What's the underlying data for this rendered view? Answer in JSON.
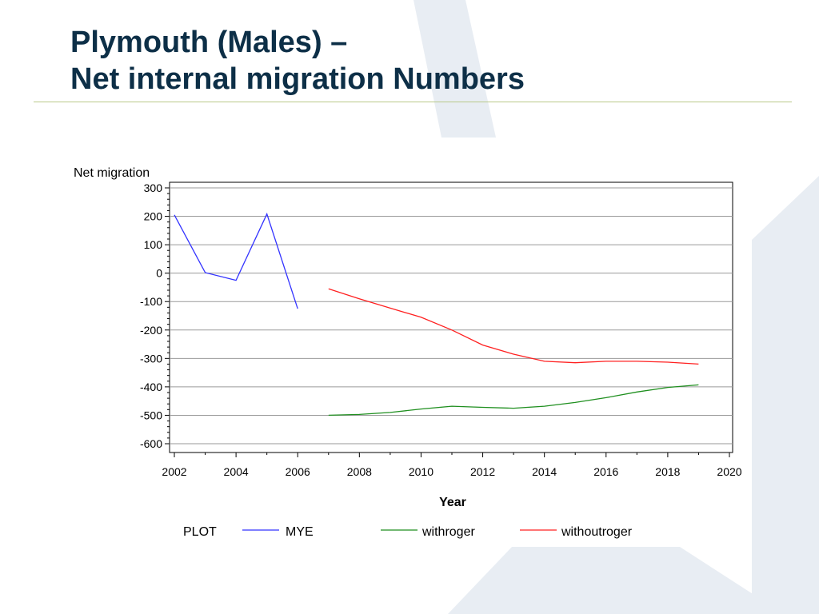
{
  "slide": {
    "title_line1": "Plymouth (Males) –",
    "title_line2": "Net internal migration Numbers"
  },
  "colors": {
    "title": "#0d2f47",
    "background_shape": "#e8edf3",
    "rule": "#b9c98a"
  },
  "chart_data": {
    "type": "line",
    "title": "",
    "xlabel": "Year",
    "ylabel": "Net migration",
    "xlim": [
      2002,
      2020
    ],
    "ylim": [
      -600,
      300
    ],
    "x_ticks": [
      2002,
      2004,
      2006,
      2008,
      2010,
      2012,
      2014,
      2016,
      2018,
      2020
    ],
    "y_ticks": [
      300,
      200,
      100,
      0,
      -100,
      -200,
      -300,
      -400,
      -500,
      -600
    ],
    "grid": "horizontal",
    "legend": {
      "placement": "bottom",
      "title": "PLOT"
    },
    "series": [
      {
        "name": "MYE",
        "color": "#3333ff",
        "x": [
          2002,
          2003,
          2004,
          2005,
          2006
        ],
        "y": [
          205,
          2,
          -25,
          208,
          -125
        ]
      },
      {
        "name": "withroger",
        "color": "#1f8f1f",
        "x": [
          2007,
          2008,
          2009,
          2010,
          2011,
          2012,
          2013,
          2014,
          2015,
          2016,
          2017,
          2018,
          2019
        ],
        "y": [
          -500,
          -497,
          -490,
          -478,
          -468,
          -472,
          -475,
          -468,
          -455,
          -438,
          -418,
          -402,
          -393
        ]
      },
      {
        "name": "withoutroger",
        "color": "#ff2020",
        "x": [
          2007,
          2008,
          2009,
          2010,
          2011,
          2012,
          2013,
          2014,
          2015,
          2016,
          2017,
          2018,
          2019
        ],
        "y": [
          -55,
          -90,
          -123,
          -155,
          -200,
          -253,
          -285,
          -310,
          -315,
          -310,
          -310,
          -313,
          -320
        ]
      }
    ]
  }
}
